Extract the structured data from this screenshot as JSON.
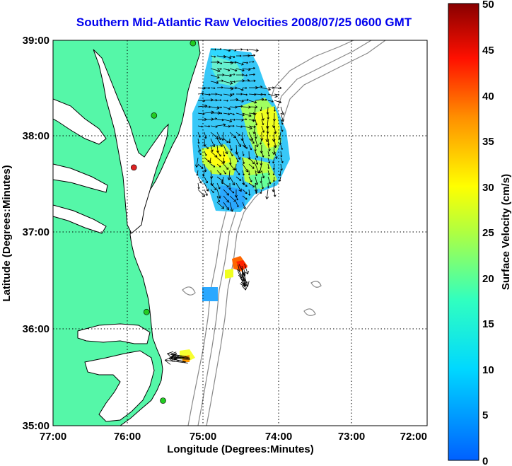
{
  "title": "Southern Mid-Atlantic Raw Velocities 2008/07/25 0600 GMT",
  "x_axis": {
    "label": "Longitude (Degrees:Minutes)",
    "ticks": [
      "77:00",
      "76:00",
      "75:00",
      "74:00",
      "73:00",
      "72:00"
    ],
    "values": [
      -77,
      -76,
      -75,
      -74,
      -73,
      -72
    ]
  },
  "y_axis": {
    "label": "Latitude (Degrees:Minutes)",
    "ticks": [
      "39:00",
      "38:00",
      "37:00",
      "36:00",
      "35:00"
    ],
    "values": [
      39,
      38,
      37,
      36,
      35
    ]
  },
  "colorbar": {
    "label": "Surface Velocity (cm/s)",
    "ticks": [
      "50",
      "45",
      "40",
      "35",
      "30",
      "25",
      "20",
      "15",
      "10",
      "5",
      "0"
    ],
    "min": 0,
    "max": 50
  },
  "colors": {
    "land": "#55f7a8",
    "coast": "#000000",
    "grid": "#000000",
    "isobath": "#888888",
    "title": "#0000ee",
    "station_green": "#22cc22",
    "station_red": "#dd2222",
    "vector": "#000000"
  },
  "stations": [
    {
      "color": "green",
      "lat": 38.97,
      "lon": -75.13
    },
    {
      "color": "green",
      "lat": 38.22,
      "lon": -75.65
    },
    {
      "color": "red",
      "lat": 37.68,
      "lon": -75.92
    },
    {
      "color": "green",
      "lat": 36.18,
      "lon": -75.75
    },
    {
      "color": "green",
      "lat": 35.26,
      "lon": -75.53
    }
  ]
}
